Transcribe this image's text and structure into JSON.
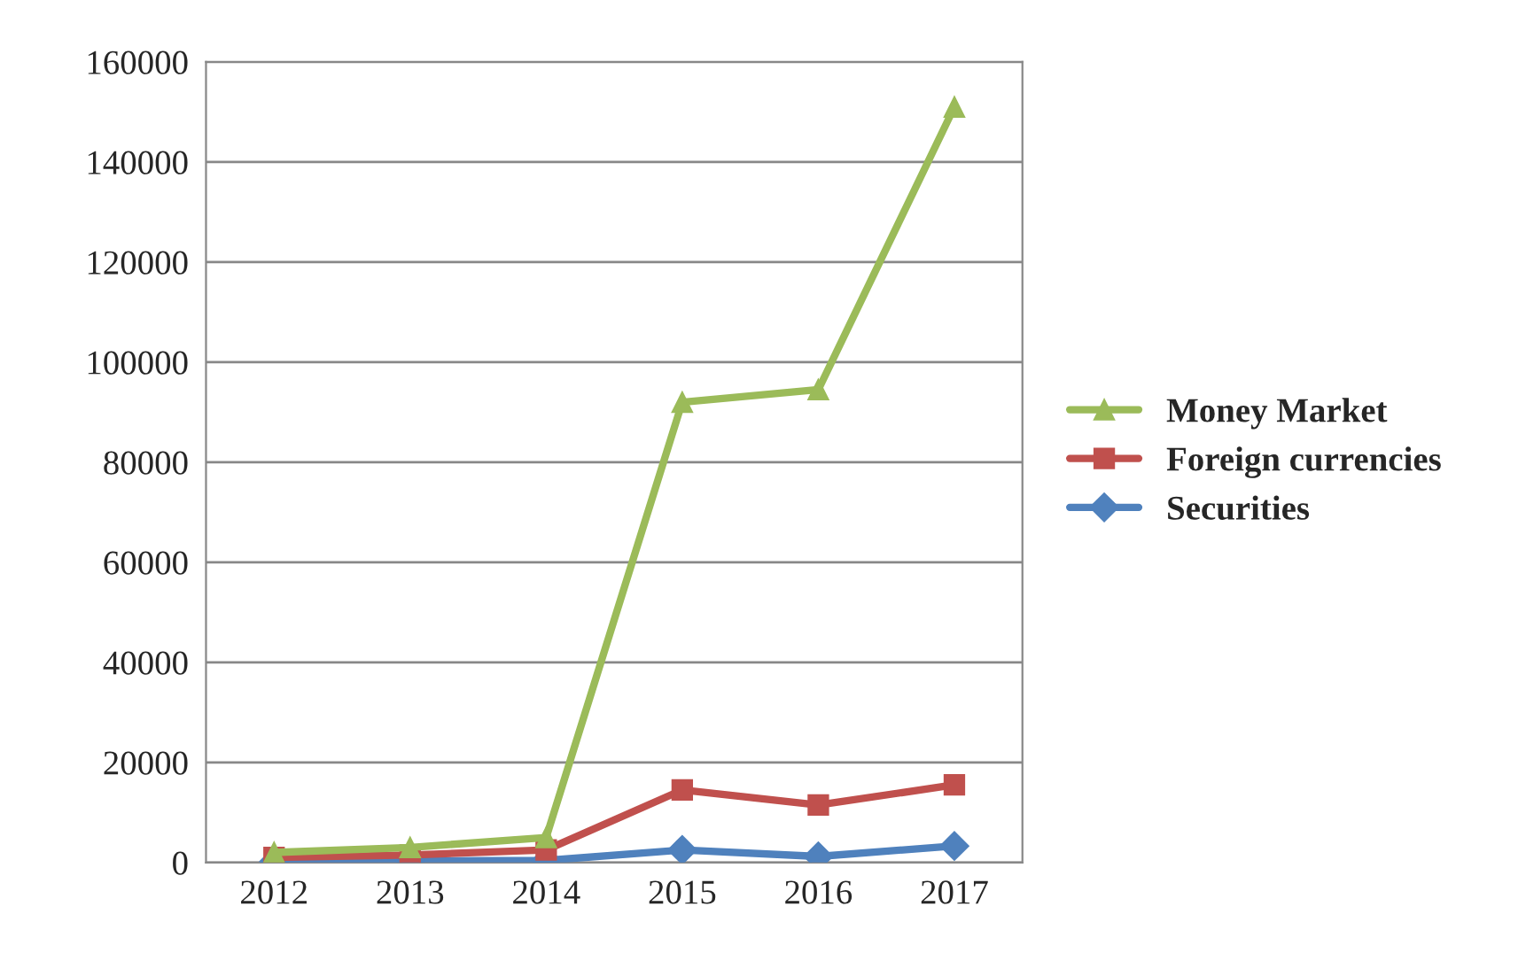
{
  "chart_data": {
    "type": "line",
    "categories": [
      "2012",
      "2013",
      "2014",
      "2015",
      "2016",
      "2017"
    ],
    "series": [
      {
        "name": "Money Market",
        "color": "#9bbb59",
        "marker": "triangle",
        "values": [
          2000,
          3000,
          5000,
          92000,
          94500,
          151000
        ]
      },
      {
        "name": "Foreign currencies",
        "color": "#c0504d",
        "marker": "square",
        "values": [
          1000,
          1500,
          2500,
          14500,
          11500,
          15500
        ]
      },
      {
        "name": "Securities",
        "color": "#4f81bd",
        "marker": "diamond",
        "values": [
          200,
          300,
          400,
          2500,
          1200,
          3300
        ]
      }
    ],
    "ylim": [
      0,
      160000
    ],
    "yticks": [
      0,
      20000,
      40000,
      60000,
      80000,
      100000,
      120000,
      140000,
      160000
    ],
    "grid": "y",
    "legend": "right"
  }
}
